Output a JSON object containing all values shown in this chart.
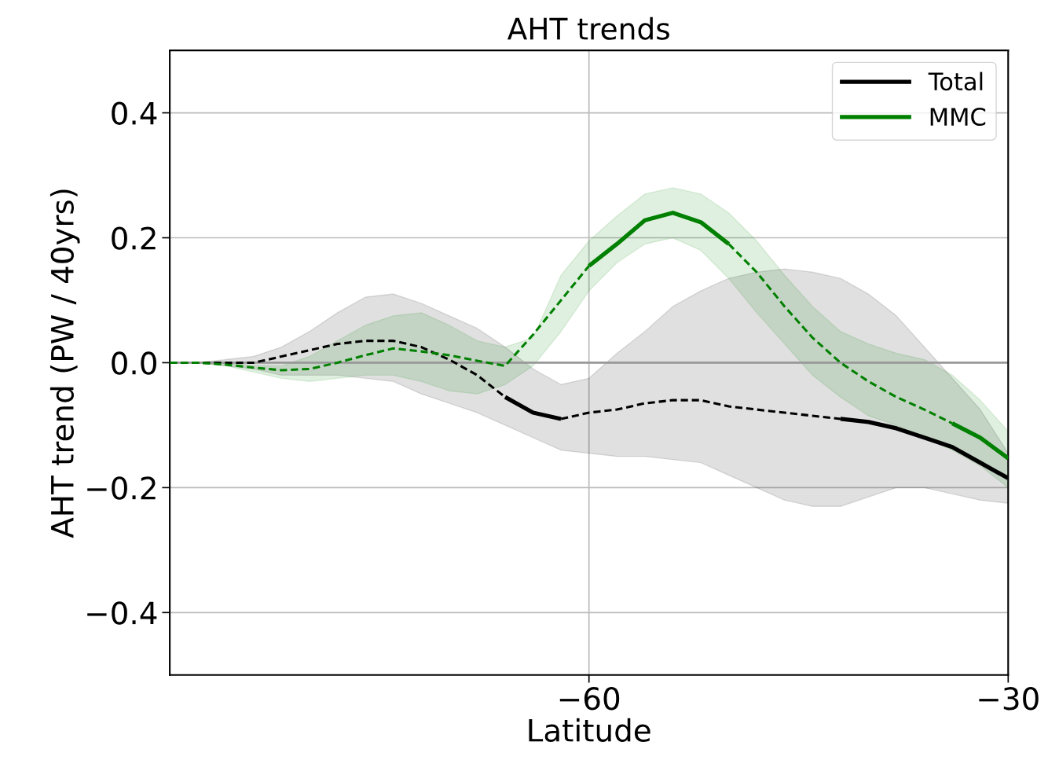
{
  "chart_data": {
    "type": "line",
    "title": "AHT trends",
    "xlabel": "Latitude",
    "ylabel": "AHT trend (PW / 40yrs)",
    "x": [
      -90,
      -88,
      -86,
      -84,
      -82,
      -80,
      -78,
      -76,
      -74,
      -72,
      -70,
      -68,
      -66,
      -64,
      -62,
      -60,
      -58,
      -56,
      -54,
      -52,
      -50,
      -48,
      -46,
      -44,
      -42,
      -40,
      -38,
      -36,
      -34,
      -32,
      -30
    ],
    "series": [
      {
        "name": "Total",
        "color": "#000000",
        "line_style": "solid",
        "values": [
          null,
          null,
          null,
          null,
          null,
          null,
          null,
          null,
          null,
          null,
          null,
          null,
          -0.055,
          -0.08,
          -0.09,
          null,
          null,
          null,
          null,
          null,
          null,
          null,
          null,
          null,
          -0.09,
          -0.095,
          -0.105,
          -0.12,
          -0.135,
          -0.16,
          -0.185
        ],
        "lower": [
          0,
          0,
          -0.005,
          -0.01,
          -0.02,
          -0.02,
          -0.02,
          -0.025,
          -0.03,
          -0.05,
          -0.065,
          -0.08,
          -0.1,
          -0.12,
          -0.14,
          -0.145,
          -0.15,
          -0.15,
          -0.155,
          -0.16,
          -0.18,
          -0.2,
          -0.22,
          -0.23,
          -0.23,
          -0.215,
          -0.2,
          -0.2,
          -0.21,
          -0.22,
          -0.225
        ],
        "upper": [
          0,
          0,
          0.005,
          0.01,
          0.025,
          0.05,
          0.08,
          0.105,
          0.11,
          0.095,
          0.075,
          0.055,
          0.025,
          -0.01,
          -0.035,
          -0.025,
          0.015,
          0.05,
          0.09,
          0.115,
          0.135,
          0.145,
          0.15,
          0.145,
          0.135,
          0.11,
          0.075,
          0.025,
          -0.025,
          -0.075,
          -0.145
        ]
      },
      {
        "color": "#000000",
        "line_style": "dashed",
        "values": [
          0,
          0,
          0,
          0,
          0.01,
          0.02,
          0.03,
          0.035,
          0.035,
          0.025,
          0.005,
          -0.02,
          -0.055,
          null,
          -0.09,
          -0.08,
          -0.075,
          -0.065,
          -0.06,
          -0.06,
          -0.07,
          -0.075,
          -0.08,
          -0.085,
          -0.09,
          null,
          null,
          null,
          null,
          null,
          null
        ]
      },
      {
        "name": "MMC",
        "color": "#008000",
        "line_style": "solid",
        "values": [
          null,
          null,
          null,
          null,
          null,
          null,
          null,
          null,
          null,
          null,
          null,
          null,
          null,
          null,
          null,
          0.155,
          0.19,
          0.228,
          0.24,
          0.225,
          0.19,
          null,
          null,
          null,
          null,
          null,
          null,
          null,
          -0.097,
          -0.12,
          -0.153
        ],
        "lower": [
          0,
          0,
          -0.005,
          -0.015,
          -0.025,
          -0.03,
          -0.025,
          -0.02,
          -0.02,
          -0.03,
          -0.045,
          -0.05,
          -0.035,
          -0.005,
          0.05,
          0.115,
          0.16,
          0.19,
          0.2,
          0.18,
          0.135,
          0.08,
          0.03,
          -0.02,
          -0.055,
          -0.085,
          -0.1,
          -0.12,
          -0.14,
          -0.165,
          -0.2
        ],
        "upper": [
          0,
          0,
          0,
          -0.005,
          -0.005,
          0.01,
          0.035,
          0.06,
          0.075,
          0.08,
          0.06,
          0.035,
          0.025,
          0.04,
          0.14,
          0.195,
          0.235,
          0.27,
          0.28,
          0.27,
          0.24,
          0.195,
          0.14,
          0.09,
          0.05,
          0.03,
          0.015,
          0.005,
          -0.02,
          -0.06,
          -0.11
        ]
      },
      {
        "color": "#008000",
        "line_style": "dashed",
        "values": [
          0,
          0,
          -0.003,
          -0.008,
          -0.012,
          -0.01,
          0,
          0.012,
          0.023,
          0.018,
          0.012,
          0.003,
          -0.005,
          0.045,
          0.1,
          0.155,
          null,
          null,
          null,
          null,
          0.19,
          0.145,
          0.09,
          0.04,
          0,
          -0.03,
          -0.055,
          -0.075,
          -0.097,
          null,
          null
        ]
      }
    ],
    "xlim": [
      -90,
      -30
    ],
    "xticks": [
      {
        "value": -60,
        "label": "−60"
      },
      {
        "value": -30,
        "label": "−30"
      }
    ],
    "ylim": [
      -0.5,
      0.5
    ],
    "yticks": [
      {
        "value": 0.4,
        "label": "0.4"
      },
      {
        "value": 0.2,
        "label": "0.2"
      },
      {
        "value": 0,
        "label": "0.0"
      },
      {
        "value": -0.2,
        "label": "−0.2"
      },
      {
        "value": -0.4,
        "label": "−0.4"
      }
    ],
    "ref_lines": [
      {
        "axis": "y",
        "value": 0,
        "color": "#999999"
      }
    ],
    "grid": true,
    "legend": "top right",
    "marker": "none"
  }
}
